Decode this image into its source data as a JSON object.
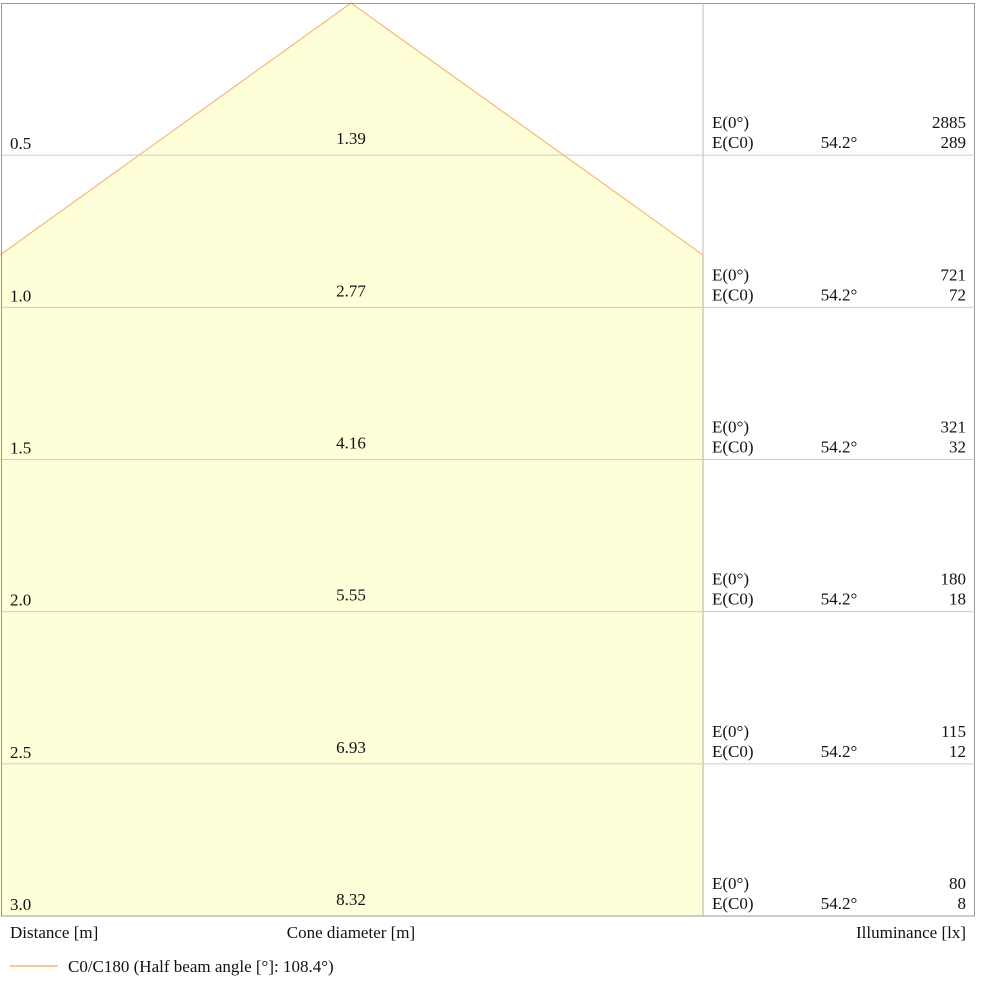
{
  "rows": [
    {
      "distance": "0.5",
      "diameter": "1.39",
      "e0_label": "E(0°)",
      "ec0_label": "E(C0)",
      "angle": "54.2°",
      "e0": "2885",
      "ec0": "289"
    },
    {
      "distance": "1.0",
      "diameter": "2.77",
      "e0_label": "E(0°)",
      "ec0_label": "E(C0)",
      "angle": "54.2°",
      "e0": "721",
      "ec0": "72"
    },
    {
      "distance": "1.5",
      "diameter": "4.16",
      "e0_label": "E(0°)",
      "ec0_label": "E(C0)",
      "angle": "54.2°",
      "e0": "321",
      "ec0": "32"
    },
    {
      "distance": "2.0",
      "diameter": "5.55",
      "e0_label": "E(0°)",
      "ec0_label": "E(C0)",
      "angle": "54.2°",
      "e0": "180",
      "ec0": "18"
    },
    {
      "distance": "2.5",
      "diameter": "6.93",
      "e0_label": "E(0°)",
      "ec0_label": "E(C0)",
      "angle": "54.2°",
      "e0": "115",
      "ec0": "12"
    },
    {
      "distance": "3.0",
      "diameter": "8.32",
      "e0_label": "E(0°)",
      "ec0_label": "E(C0)",
      "angle": "54.2°",
      "e0": "80",
      "ec0": "8"
    }
  ],
  "footer": {
    "distance_label": "Distance [m]",
    "diameter_label": "Cone diameter [m]",
    "illuminance_label": "Illuminance [lx]"
  },
  "legend": {
    "label": "C0/C180 (Half beam angle [°]: 108.4°)"
  }
}
